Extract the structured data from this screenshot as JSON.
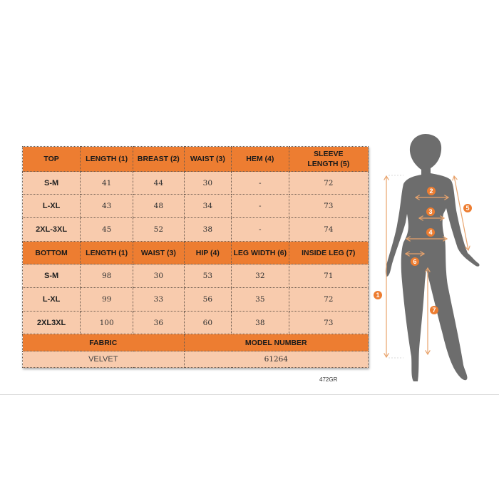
{
  "top_table": {
    "headers": [
      "TOP",
      "LENGTH (1)",
      "BREAST (2)",
      "WAIST (3)",
      "HEM (4)",
      "SLEEVE LENGTH (5)"
    ],
    "rows": [
      [
        "S-M",
        "41",
        "44",
        "30",
        "-",
        "72"
      ],
      [
        "L-XL",
        "43",
        "48",
        "34",
        "-",
        "73"
      ],
      [
        "2XL-3XL",
        "45",
        "52",
        "38",
        "-",
        "74"
      ]
    ]
  },
  "bottom_table": {
    "headers": [
      "BOTTOM",
      "LENGTH (1)",
      "WAIST (3)",
      "HIP (4)",
      "LEG WIDTH (6)",
      "INSIDE LEG (7)"
    ],
    "rows": [
      [
        "S-M",
        "98",
        "30",
        "53",
        "32",
        "71"
      ],
      [
        "L-XL",
        "99",
        "33",
        "56",
        "35",
        "72"
      ],
      [
        "2XL3XL",
        "100",
        "36",
        "60",
        "38",
        "73"
      ]
    ]
  },
  "info": {
    "fabric_label": "FABRIC",
    "fabric_value": "VELVET",
    "model_label": "MODEL NUMBER",
    "model_value": "61264"
  },
  "code": "472GR",
  "figure": {
    "markers": [
      "1",
      "2",
      "3",
      "4",
      "5",
      "6",
      "7"
    ]
  },
  "colors": {
    "header": "#ED7D31",
    "cell": "#F8CBAD",
    "silhouette": "#6d6d6d",
    "arrow": "#E8A36C",
    "marker": "#ED7D31"
  }
}
